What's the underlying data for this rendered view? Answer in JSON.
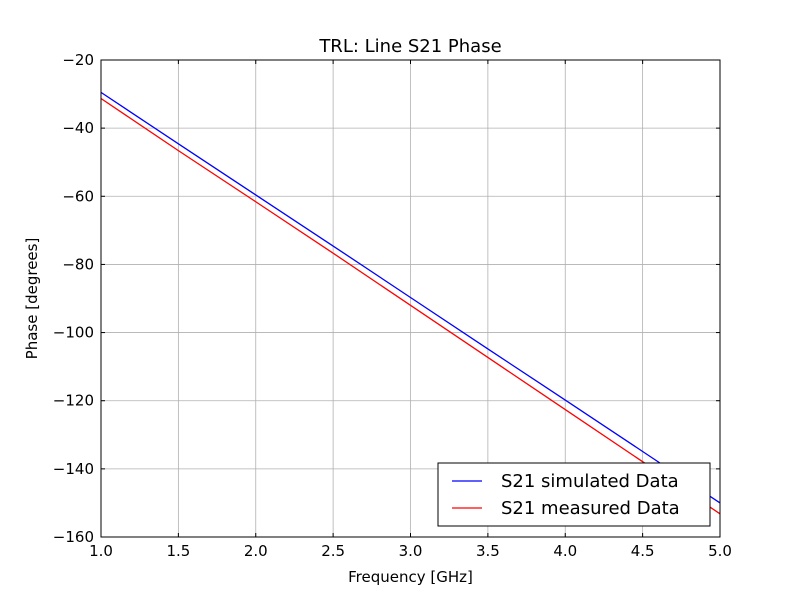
{
  "chart_data": {
    "type": "line",
    "title": "TRL: Line S21 Phase",
    "xlabel": "Frequency [GHz]",
    "ylabel": "Phase [degrees]",
    "xlim": [
      1.0,
      5.0
    ],
    "ylim": [
      -160,
      -20
    ],
    "x_ticks": [
      1.0,
      1.5,
      2.0,
      2.5,
      3.0,
      3.5,
      4.0,
      4.5,
      5.0
    ],
    "x_tick_labels": [
      "1.0",
      "1.5",
      "2.0",
      "2.5",
      "3.0",
      "3.5",
      "4.0",
      "4.5",
      "5.0"
    ],
    "y_ticks": [
      -160,
      -140,
      -120,
      -100,
      -80,
      -60,
      -40,
      -20
    ],
    "y_tick_labels": [
      "−160",
      "−140",
      "−120",
      "−100",
      "−80",
      "−60",
      "−40",
      "−20"
    ],
    "grid": true,
    "legend_position": "lower-right",
    "series": [
      {
        "name": "S21 simulated Data",
        "color": "#0000ff",
        "x": [
          1.0,
          1.5,
          2.0,
          2.5,
          3.0,
          3.5,
          4.0,
          4.5,
          5.0
        ],
        "values": [
          -29.5,
          -44.6,
          -59.6,
          -74.6,
          -89.7,
          -104.8,
          -119.8,
          -134.9,
          -150.0
        ]
      },
      {
        "name": "S21 measured Data",
        "color": "#ff0000",
        "x": [
          1.0,
          1.5,
          2.0,
          2.5,
          3.0,
          3.5,
          4.0,
          4.5,
          5.0
        ],
        "values": [
          -31.3,
          -46.6,
          -61.6,
          -76.7,
          -92.0,
          -107.3,
          -122.6,
          -137.9,
          -153.2
        ]
      }
    ]
  }
}
